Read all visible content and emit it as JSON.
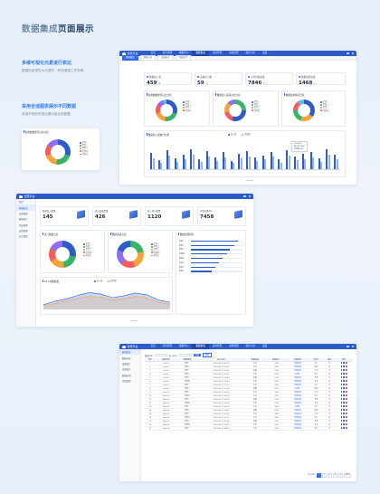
{
  "page": {
    "title_part1": "数据集成",
    "title_part2": "页面展示"
  },
  "notes": [
    {
      "heading": "多维可视化元素进行表达",
      "body": "数据的呈现性大大提升，有效增强工作效率。"
    },
    {
      "heading": "采用合适图表展示不同数据",
      "body": "采用不同的可视化展示适合的数据"
    }
  ],
  "header": {
    "brand": "智慧平台",
    "nav": [
      "首页",
      "综合管理",
      "数据中心",
      "数据集成",
      "应用管理",
      "系统管理",
      "统计分析",
      "设置"
    ],
    "active_nav": 3
  },
  "screen1": {
    "tabs": [
      "数据集成",
      "数据总览",
      "设备统计",
      "运维统计"
    ],
    "stats": [
      {
        "label": "数据接入量",
        "value": "459",
        "unit": "条"
      },
      {
        "label": "设备接入数",
        "value": "59",
        "unit": "台"
      },
      {
        "label": "平台存储总量",
        "value": "7846",
        "unit": "G"
      },
      {
        "label": "数据处理总量",
        "value": "1468",
        "unit": "万"
      }
    ],
    "donut_titles": [
      "各类数据类型占比分析",
      "数据接入来源占比分析",
      "数据使用情况分析"
    ],
    "legend_items": [
      "类型一",
      "类型二",
      "类型三",
      "类型四",
      "类型五",
      "类型六"
    ],
    "bar_title": "数据接入量统计分析",
    "bar_series": [
      "接入量",
      "处理量"
    ],
    "tooltip_lines": [
      "2023-08",
      "接入量 1246",
      "处理量 853"
    ]
  },
  "floating_card": {
    "title": "各类数据类型占比分析",
    "legend_items": [
      "类型一",
      "类型二",
      "类型三",
      "类型四",
      "类型五"
    ]
  },
  "screen2": {
    "sidebar": [
      "首页",
      "数据集成",
      "设备管理",
      "数据统计",
      "系统管理",
      "运维管理",
      "日志管理"
    ],
    "active_side": 1,
    "stats": [
      {
        "label": "数据接入数量",
        "value": "145"
      },
      {
        "label": "接入设备数量",
        "value": "426"
      },
      {
        "label": "接入用户数量",
        "value": "1120"
      },
      {
        "label": "存储总量(G)",
        "value": "7458"
      }
    ],
    "donut_titles": [
      "接入数据占比",
      "数据来源占比"
    ],
    "rank_title": "数据处理排名",
    "rank_rows": [
      "数据一",
      "数据二",
      "数据三",
      "数据四",
      "数据五",
      "数据六",
      "数据七",
      "数据八"
    ],
    "area_title": "24小时数据量",
    "area_series": [
      "接入量",
      "处理量"
    ]
  },
  "screen3": {
    "sidebar": [
      "数据集成",
      "数据总览",
      "设备统计",
      "运维统计",
      "数据查询",
      "系统配置"
    ],
    "active_side": 0,
    "filter": {
      "label1": "数据名称",
      "label2": "接入时间",
      "search": "查询",
      "reset": "重置"
    },
    "table": {
      "headers": [
        "序号",
        "数据名称",
        "数据类型",
        "接入时间",
        "数据来源",
        "数据大小",
        "处理状态",
        "负责人",
        "备注",
        "操作"
      ],
      "rows": [
        [
          "1",
          "Data1",
          "类型一",
          "2023-08-11 09:26",
          "平台",
          "24M",
          "处理完成",
          "张三",
          "无"
        ],
        [
          "2",
          "Data2",
          "类型二",
          "2023-08-11 09:31",
          "平台",
          "36M",
          "处理完成",
          "李四",
          "无"
        ],
        [
          "3",
          "Data3",
          "类型一",
          "2023-08-11 10:02",
          "设备",
          "18M",
          "处理完成",
          "王五",
          "无"
        ],
        [
          "4",
          "Data4",
          "类型三",
          "2023-08-11 10:15",
          "平台",
          "52M",
          "处理中",
          "张三",
          "无"
        ],
        [
          "5",
          "Data5",
          "类型二",
          "2023-08-11 10:40",
          "设备",
          "12M",
          "处理完成",
          "李四",
          "无"
        ],
        [
          "6",
          "Data6",
          "类型四",
          "2023-08-11 11:03",
          "平台",
          "28M",
          "处理完成",
          "王五",
          "无"
        ],
        [
          "7",
          "Data7",
          "类型一",
          "2023-08-11 11:22",
          "平台",
          "64M",
          "处理完成",
          "张三",
          "无"
        ],
        [
          "8",
          "Data8",
          "类型三",
          "2023-08-11 13:08",
          "设备",
          "20M",
          "处理中",
          "李四",
          "无"
        ],
        [
          "9",
          "Data9",
          "类型二",
          "2023-08-11 13:45",
          "平台",
          "33M",
          "处理完成",
          "王五",
          "无"
        ],
        [
          "10",
          "Data10",
          "类型五",
          "2023-08-11 14:10",
          "平台",
          "41M",
          "处理完成",
          "张三",
          "无"
        ],
        [
          "11",
          "Data11",
          "类型一",
          "2023-08-11 14:36",
          "设备",
          "15M",
          "处理完成",
          "李四",
          "无"
        ],
        [
          "12",
          "Data12",
          "类型四",
          "2023-08-11 15:02",
          "平台",
          "27M",
          "处理完成",
          "王五",
          "无"
        ],
        [
          "13",
          "Data13",
          "类型二",
          "2023-08-11 15:28",
          "平台",
          "38M",
          "处理中",
          "张三",
          "无"
        ],
        [
          "14",
          "Data14",
          "类型三",
          "2023-08-11 16:05",
          "设备",
          "22M",
          "处理完成",
          "李四",
          "无"
        ],
        [
          "15",
          "Data15",
          "类型一",
          "2023-08-11 16:40",
          "平台",
          "46M",
          "处理完成",
          "王五",
          "无"
        ],
        [
          "16",
          "Data16",
          "类型五",
          "2023-08-11 17:12",
          "平台",
          "30M",
          "处理完成",
          "张三",
          "无"
        ],
        [
          "17",
          "Data17",
          "类型二",
          "2023-08-11 17:36",
          "设备",
          "19M",
          "处理完成",
          "李四",
          "无"
        ],
        [
          "18",
          "Data18",
          "类型四",
          "2023-08-11 18:02",
          "平台",
          "25M",
          "处理完成",
          "王五",
          "无"
        ],
        [
          "19",
          "Data19",
          "类型一",
          "2023-08-11 18:30",
          "平台",
          "35M",
          "处理完成",
          "张三",
          "无"
        ]
      ]
    },
    "pager": [
      "共100条",
      "1",
      "2",
      "3",
      "4",
      "5",
      "跳至"
    ]
  },
  "chart_data": [
    {
      "type": "pie",
      "categories": [
        "类型一",
        "类型二",
        "类型三",
        "类型四",
        "类型五",
        "类型六"
      ],
      "values": [
        30,
        22,
        18,
        14,
        10,
        6
      ]
    },
    {
      "type": "bar",
      "categories": [
        "01",
        "02",
        "03",
        "04",
        "05",
        "06",
        "07",
        "08",
        "09",
        "10",
        "11",
        "12",
        "13",
        "14",
        "15",
        "16",
        "17",
        "18",
        "19",
        "20",
        "21",
        "22",
        "23",
        "24"
      ],
      "series": [
        {
          "name": "接入量",
          "values": [
            60,
            35,
            70,
            40,
            55,
            72,
            38,
            66,
            45,
            62,
            30,
            58,
            68,
            42,
            50,
            64,
            36,
            70,
            48,
            56,
            62,
            40,
            74,
            52
          ]
        },
        {
          "name": "处理量",
          "values": [
            40,
            25,
            50,
            28,
            38,
            52,
            26,
            46,
            30,
            44,
            22,
            40,
            48,
            30,
            36,
            46,
            24,
            50,
            32,
            38,
            44,
            28,
            54,
            36
          ]
        }
      ],
      "ylim": [
        0,
        100
      ]
    },
    {
      "type": "area",
      "x": [
        "00",
        "02",
        "04",
        "06",
        "08",
        "10",
        "12",
        "14",
        "16",
        "18",
        "20",
        "22"
      ],
      "series": [
        {
          "name": "接入量",
          "values": [
            20,
            35,
            45,
            60,
            72,
            65,
            50,
            58,
            70,
            62,
            40,
            30
          ]
        },
        {
          "name": "处理量",
          "values": [
            15,
            25,
            35,
            48,
            55,
            52,
            40,
            45,
            55,
            48,
            30,
            22
          ]
        }
      ],
      "ylim": [
        0,
        100
      ]
    }
  ],
  "colors": {
    "primary": "#2d5cc9",
    "accent": "#2d6cf0",
    "donut": [
      "#2d5cc9",
      "#39b36b",
      "#f2a33a",
      "#f25e5e",
      "#8f6cf0",
      "#5bc0eb"
    ]
  }
}
